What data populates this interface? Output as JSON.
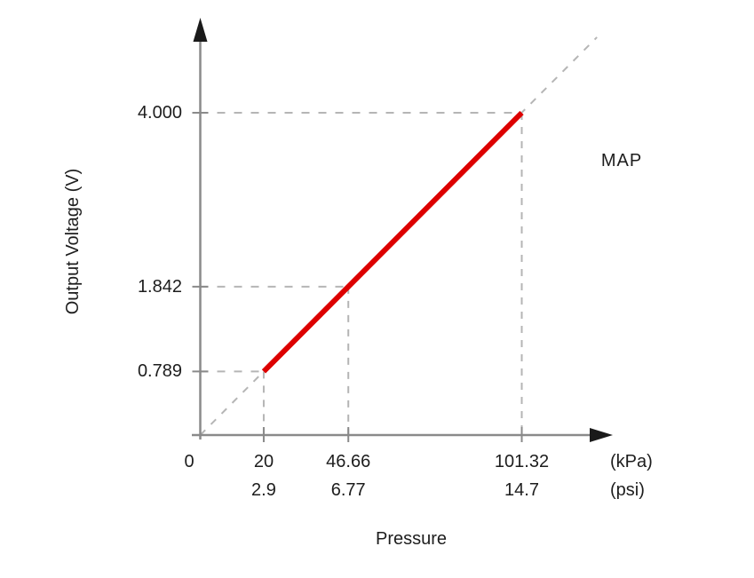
{
  "chart_data": {
    "type": "line",
    "title": "",
    "xlabel": "Pressure",
    "ylabel": "Output Voltage (V)",
    "annotation": "MAP",
    "x_axis": {
      "origin_label": "0",
      "unit_rows": [
        "(kPa)",
        "(psi)"
      ]
    },
    "points": [
      {
        "kpa": 20,
        "psi": 2.9,
        "volts": 0.789,
        "kpa_label": "20",
        "psi_label": "2.9",
        "volt_label": "0.789"
      },
      {
        "kpa": 46.66,
        "psi": 6.77,
        "volts": 1.842,
        "kpa_label": "46.66",
        "psi_label": "6.77",
        "volt_label": "1.842"
      },
      {
        "kpa": 101.32,
        "psi": 14.7,
        "volts": 4.0,
        "kpa_label": "101.32",
        "psi_label": "14.7",
        "volt_label": "4.000"
      }
    ],
    "solid_segment": {
      "kpa": [
        20,
        101.32
      ],
      "volts": [
        0.789,
        4.0
      ]
    },
    "dashed_extension": {
      "kpa": [
        0,
        125
      ],
      "volts": [
        0,
        4.937
      ]
    },
    "xlim": [
      0,
      130
    ],
    "ylim": [
      0,
      5.4
    ],
    "legend": "none",
    "grid": "dashed-guides-only",
    "colors": {
      "line": "#dd0000",
      "dashed": "#b5b5b5",
      "axis": "#8a8a8a",
      "arrow": "#1a1a1a",
      "text": "#1d1d1d",
      "background": "#ffffff"
    }
  }
}
